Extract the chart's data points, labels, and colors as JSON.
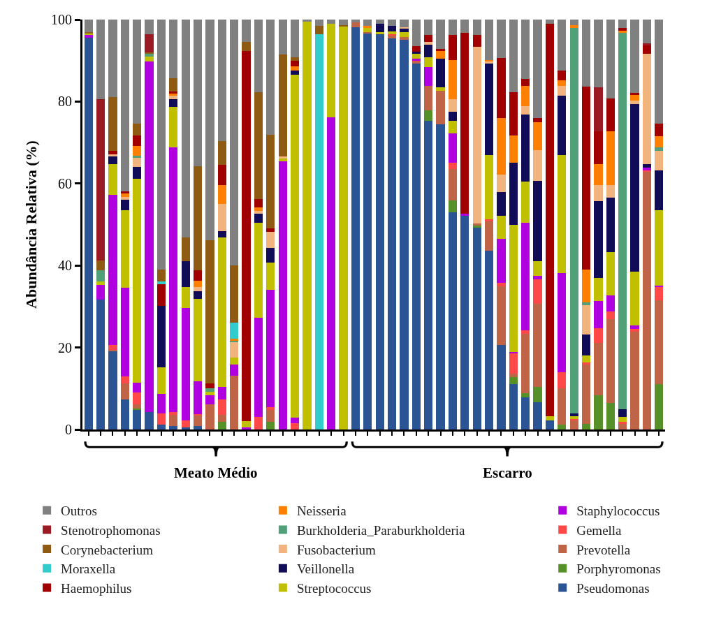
{
  "chart_data": {
    "type": "bar",
    "stacked": true,
    "ylabel": "Abundância Relativa (%)",
    "ylim": [
      0,
      100
    ],
    "yticks": [
      0,
      20,
      40,
      60,
      80,
      100
    ],
    "legend": "bottom",
    "categories": [
      null,
      null,
      null,
      null,
      null,
      null,
      null,
      null,
      null,
      null,
      null,
      null,
      null,
      null,
      null,
      null,
      null,
      null,
      null,
      null,
      null,
      null,
      null,
      null,
      null,
      null,
      null,
      null,
      null,
      null,
      null,
      null,
      null,
      null,
      null,
      null,
      null,
      null,
      null,
      null,
      null,
      null,
      null,
      null,
      null,
      null,
      null,
      null
    ],
    "annotations": [
      "Meato Médio",
      "Escarro"
    ],
    "series": [
      {
        "name": "Pseudomonas",
        "color": "#2a5494",
        "values": [
          95.5,
          31.7,
          19.2,
          7.4,
          4.8,
          4.2,
          1.2,
          0.8,
          0.5,
          0.8,
          0,
          0,
          0,
          0,
          0,
          0,
          0,
          0,
          0,
          0,
          0,
          0,
          98.1,
          96.7,
          96.5,
          95.4,
          95,
          89.3,
          75.3,
          74.5,
          52.9,
          52.1,
          49.2,
          43.6,
          20.6,
          11,
          7.8,
          6.7,
          2.2,
          0,
          0,
          0,
          0,
          0,
          0,
          0,
          0,
          0
        ]
      },
      {
        "name": "Porphyromonas",
        "color": "#569028",
        "values": [
          0,
          0,
          0,
          0,
          0.3,
          0,
          0,
          0,
          0,
          0,
          0,
          1.8,
          0,
          0,
          0,
          1.8,
          0,
          0,
          0,
          0,
          0,
          0,
          0,
          0,
          0,
          0,
          0,
          0,
          2.6,
          0,
          3,
          0,
          0.5,
          0,
          0,
          1.7,
          1,
          3.7,
          0,
          1.2,
          0,
          1.3,
          8.4,
          6.5,
          0,
          0,
          0,
          11
        ]
      },
      {
        "name": "Prevotella",
        "color": "#c06448",
        "values": [
          0,
          0,
          0.3,
          3.9,
          1,
          0,
          0,
          2.7,
          0,
          2.7,
          6.2,
          1.7,
          13.1,
          0,
          0,
          3,
          0,
          0,
          0,
          0,
          0,
          0,
          1.2,
          0.3,
          0,
          0.8,
          0.8,
          0.4,
          6,
          8.1,
          7.7,
          0,
          0.6,
          7.3,
          14.3,
          1,
          14.6,
          20.3,
          0,
          8.8,
          2.3,
          14.6,
          12.8,
          20.5,
          1.3,
          23.9,
          62.9,
          20.5
        ]
      },
      {
        "name": "Gemella",
        "color": "#ff4848",
        "values": [
          0,
          0,
          1.1,
          1.6,
          2.9,
          0,
          2.7,
          0.7,
          1.8,
          0.3,
          0,
          3.9,
          0,
          0,
          3.1,
          0.7,
          0,
          1.5,
          0,
          0,
          0,
          0,
          0,
          0,
          0,
          0.3,
          0,
          0.4,
          0,
          0,
          1.5,
          0,
          0,
          0.3,
          0.9,
          4.8,
          0.8,
          6,
          0,
          3.9,
          0.3,
          0.5,
          3.5,
          1.8,
          0.5,
          0.7,
          0.3,
          3.3
        ]
      },
      {
        "name": "Staphylococcus",
        "color": "#b000e0",
        "values": [
          0.7,
          3.6,
          36.7,
          21.6,
          2.4,
          85.5,
          4.8,
          64.7,
          27.4,
          8,
          2.2,
          3,
          2.8,
          0.5,
          24.2,
          28.6,
          65.5,
          1.4,
          0,
          0,
          76.2,
          0,
          0,
          0,
          0,
          0,
          0,
          0.3,
          4.5,
          0,
          7.1,
          0.6,
          0,
          0,
          10.7,
          0.4,
          26.3,
          0.8,
          0,
          24.2,
          0,
          0,
          6.6,
          3.9,
          0,
          0.8,
          0.6,
          0.3
        ]
      },
      {
        "name": "Streptococcus",
        "color": "#c0c000",
        "values": [
          0.4,
          0.9,
          7.4,
          19,
          49.8,
          1.2,
          6.5,
          9.8,
          5.1,
          20.1,
          0.8,
          36.5,
          1.7,
          1.5,
          23.2,
          6.6,
          0.6,
          83.6,
          99.5,
          0,
          22.7,
          98.4,
          0,
          1.1,
          0.5,
          0.6,
          1.1,
          1.4,
          2.4,
          0.8,
          3.1,
          0,
          0,
          15.8,
          5.6,
          31,
          9.9,
          3.5,
          1,
          28.9,
          0.7,
          1.6,
          5.6,
          10.6,
          1.3,
          13.1,
          0,
          18.4
        ]
      },
      {
        "name": "Veillonella",
        "color": "#100c58",
        "values": [
          0,
          0,
          1.9,
          2.5,
          2.8,
          0,
          14.9,
          1.8,
          6.2,
          1.8,
          0,
          1.5,
          0,
          0,
          2.2,
          3.6,
          0,
          1,
          0,
          0,
          0,
          0,
          0,
          0,
          1.9,
          1.3,
          1,
          0.3,
          3.1,
          7,
          2.2,
          0,
          0,
          22.2,
          5.8,
          15.2,
          16.4,
          19.6,
          0,
          14.5,
          0.6,
          5.2,
          18.8,
          13.2,
          1.8,
          40.9,
          1,
          9.7
        ]
      },
      {
        "name": "Fusobacterium",
        "color": "#f2b47e",
        "values": [
          0,
          0,
          0.6,
          0.8,
          2.3,
          0,
          0,
          1,
          0,
          1.1,
          0,
          6.6,
          3.7,
          0,
          0.7,
          3.9,
          0.5,
          0,
          0,
          0,
          0,
          0,
          0,
          0,
          0,
          0,
          0.3,
          0,
          0.6,
          0,
          3.1,
          0,
          43.1,
          0.6,
          4.3,
          0,
          2.1,
          7.5,
          0,
          2.4,
          0,
          7.2,
          3.9,
          3.2,
          0,
          0.9,
          26.8,
          4.7
        ]
      },
      {
        "name": "Burkholderia_Paraburkholderia",
        "color": "#52a07a",
        "values": [
          0,
          2.6,
          0,
          0,
          0.5,
          0.7,
          0,
          0,
          0,
          0,
          0.8,
          0,
          0.4,
          0,
          0,
          0,
          0,
          0,
          0,
          0,
          0,
          0,
          0,
          0,
          0,
          0,
          0,
          0,
          0,
          0,
          0,
          0,
          0,
          0,
          0,
          0,
          0,
          0,
          0,
          0,
          94,
          0.6,
          0,
          0,
          91.9,
          0,
          0,
          1
        ]
      },
      {
        "name": "Neisseria",
        "color": "#ff8000",
        "values": [
          0,
          0,
          0,
          0.8,
          2.4,
          0,
          0,
          0.5,
          0,
          1.5,
          0,
          4.6,
          0.5,
          0,
          0.8,
          0,
          0,
          1.1,
          0,
          0,
          0,
          0,
          0,
          0.3,
          0,
          0,
          0,
          0,
          0,
          2,
          9.5,
          0,
          0,
          0.4,
          13.8,
          6.6,
          5,
          6.8,
          0,
          1.2,
          0.8,
          8,
          5.1,
          13,
          0.5,
          1.3,
          0,
          2.6
        ]
      },
      {
        "name": "Haemophilus",
        "color": "#a00000",
        "values": [
          0,
          0,
          0.8,
          0.5,
          2.6,
          0,
          5.3,
          0.5,
          0,
          2.5,
          1.2,
          4.9,
          0,
          90.4,
          2.1,
          0.8,
          0,
          1.3,
          0,
          0,
          0,
          0,
          0,
          0,
          0,
          0,
          0,
          1.4,
          1.8,
          0.5,
          6.2,
          44,
          2.9,
          0,
          14.6,
          10.5,
          1.6,
          1,
          95.8,
          2.4,
          0,
          44.7,
          8.1,
          8.1,
          0.7,
          0.5,
          2.1,
          3.2
        ]
      },
      {
        "name": "Moraxella",
        "color": "#33cccc",
        "values": [
          0,
          0,
          0,
          0,
          0,
          0,
          0.7,
          0,
          0,
          0,
          0,
          0,
          3.9,
          0,
          0,
          0,
          0,
          0,
          0,
          96.5,
          0,
          0,
          0,
          0,
          0,
          0,
          0,
          0,
          0,
          0,
          0,
          0,
          0,
          0,
          0,
          0,
          0,
          0,
          0,
          0,
          0,
          0,
          0,
          0,
          0,
          0,
          0,
          0
        ]
      },
      {
        "name": "Corynebacterium",
        "color": "#8f5a12",
        "values": [
          0.4,
          2.4,
          13.1,
          0,
          2.8,
          0.4,
          2.9,
          3.2,
          5.9,
          25.5,
          35,
          5.9,
          13.9,
          2.1,
          26,
          22.9,
          24.8,
          0.9,
          0,
          2,
          0,
          0.3,
          0,
          0,
          0,
          0,
          0,
          0,
          0,
          0,
          0,
          0,
          0,
          0,
          0,
          0,
          0,
          0,
          0,
          0,
          0,
          0,
          0,
          0,
          0,
          0,
          0,
          0
        ]
      },
      {
        "name": "Stenotrophomonas",
        "color": "#9b1b24",
        "values": [
          0,
          39.3,
          0,
          0,
          0,
          4.5,
          0,
          0,
          0,
          0,
          0,
          0,
          0,
          0,
          0,
          0,
          0,
          0,
          0,
          0,
          0,
          0,
          0,
          0,
          0,
          0,
          0,
          0,
          0,
          0,
          0,
          0,
          0,
          0,
          0,
          0,
          0,
          0,
          0,
          0,
          0,
          0,
          10.6,
          0,
          0,
          0,
          0.5,
          0
        ]
      },
      {
        "name": "Outros",
        "color": "#808080",
        "values": [
          3,
          19.5,
          18.9,
          41.9,
          25.4,
          3.5,
          61,
          14.3,
          53.1,
          35.7,
          53.8,
          29.6,
          60,
          5.5,
          17.7,
          28.1,
          8.6,
          9.2,
          0.5,
          1.5,
          1.1,
          1.3,
          0.7,
          1.6,
          1.1,
          1.6,
          1.8,
          6.5,
          3.7,
          7.1,
          3.7,
          3.3,
          3.7,
          9.8,
          9.4,
          17.8,
          14.5,
          24.1,
          1,
          12.5,
          1.3,
          16.3,
          16.6,
          19.2,
          2,
          17.9,
          5.8,
          25.3
        ]
      }
    ]
  }
}
